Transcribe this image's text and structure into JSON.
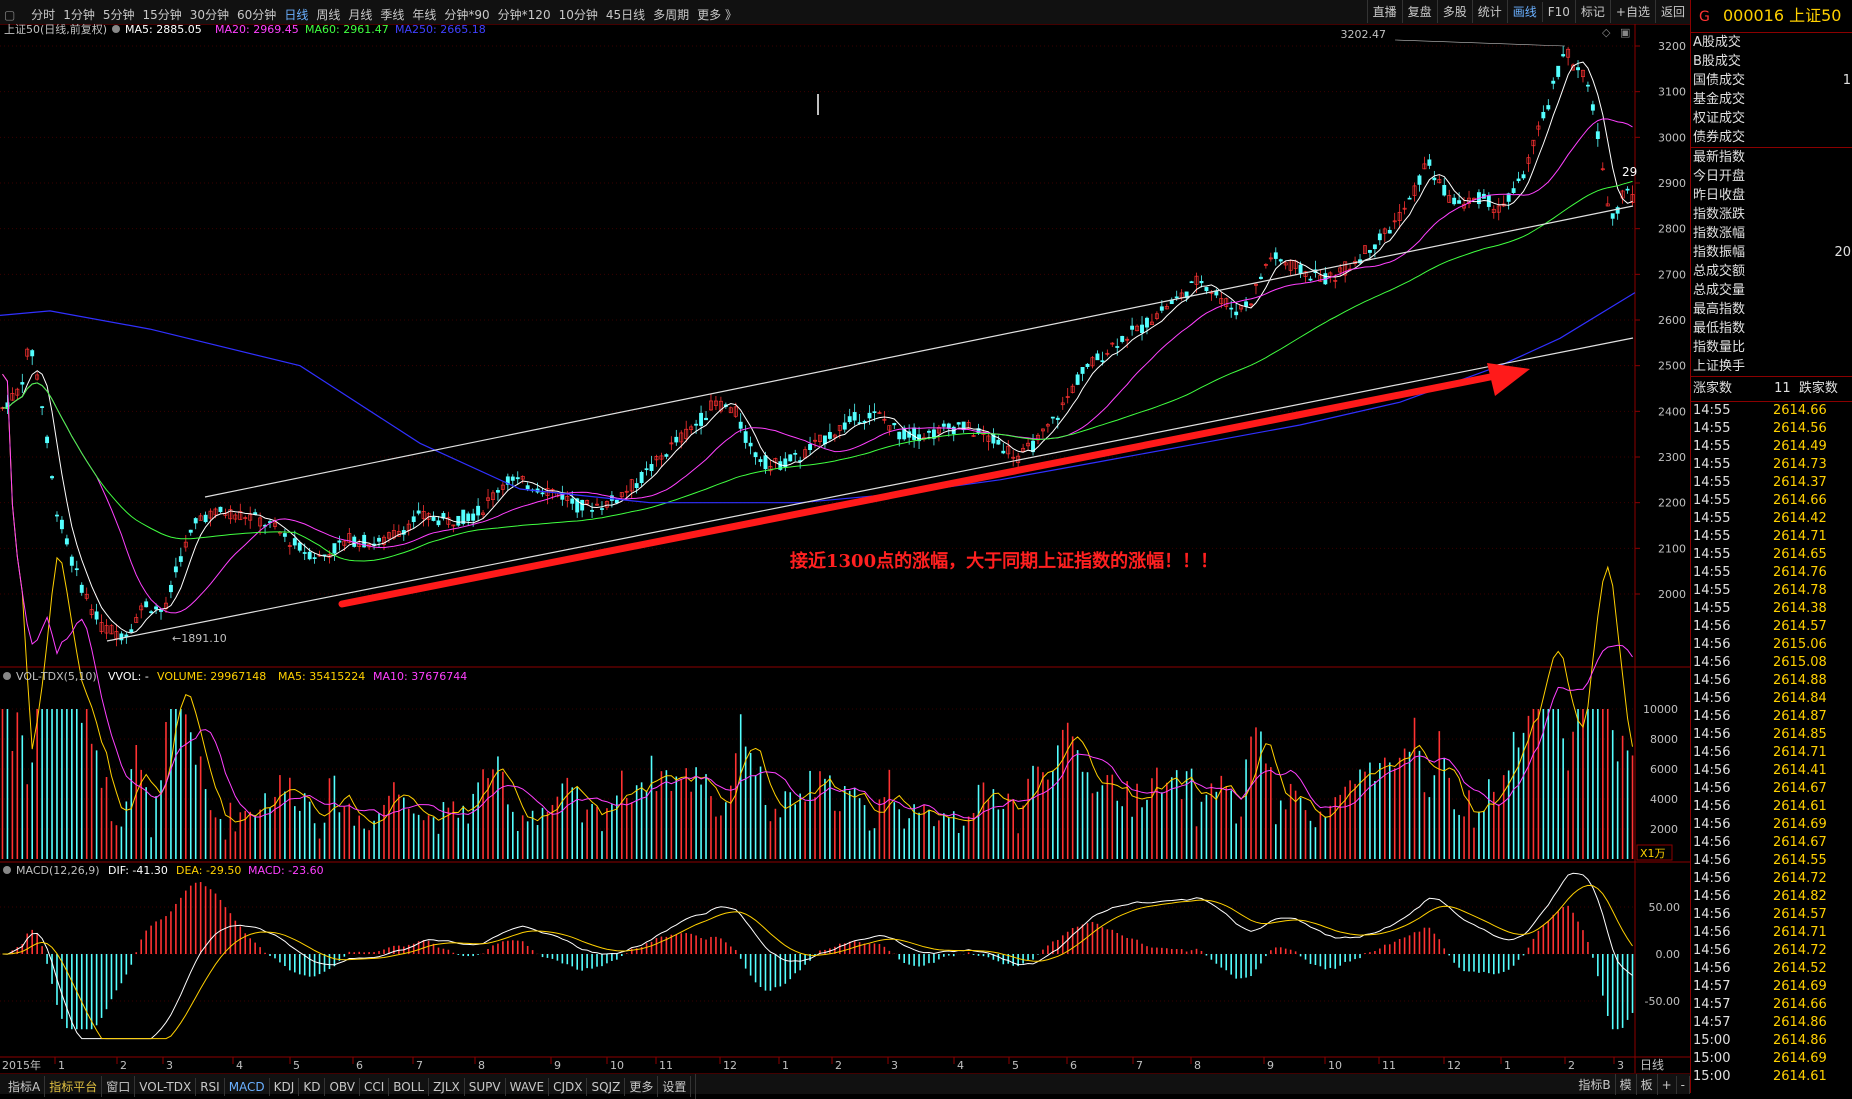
{
  "topbar": {
    "periods": [
      "分时",
      "1分钟",
      "5分钟",
      "15分钟",
      "30分钟",
      "60分钟",
      "日线",
      "周线",
      "月线",
      "季线",
      "年线",
      "分钟*90",
      "分钟*120",
      "10分钟",
      "45日线",
      "多周期",
      "更多 》"
    ],
    "active_period": "日线",
    "right_buttons": [
      "直播",
      "复盘",
      "多股",
      "统计",
      "画线",
      "F10",
      "标记",
      "+自选",
      "返回"
    ],
    "active_right": "画线"
  },
  "main_panel": {
    "title": "上证50(日线,前复权)",
    "ma_labels": [
      {
        "text": "MA5: 2885.05",
        "color": "#ffffff"
      },
      {
        "text": "MA20: 2969.45",
        "color": "#ff40ff"
      },
      {
        "text": "MA60: 2961.47",
        "color": "#40ff40"
      },
      {
        "text": "MA250: 2665.18",
        "color": "#4040ff"
      }
    ],
    "price_ticks": [
      "3200",
      "3100",
      "3000",
      "2900",
      "2800",
      "2700",
      "2600",
      "2500",
      "2400",
      "2300",
      "2200",
      "2100",
      "2000"
    ],
    "high_label": "3202.47",
    "low_label": "←1891.10",
    "annotation": "接近1300点的涨幅，大于同期上证指数的涨幅！！！",
    "partial_right": "29"
  },
  "volume_panel": {
    "title": "VOL-TDX(5,10)",
    "values": [
      {
        "text": "VVOL: -",
        "color": "#ffffff"
      },
      {
        "text": "VOLUME: 29967148",
        "color": "#ffd000"
      },
      {
        "text": "MA5: 35415224",
        "color": "#ffd000"
      },
      {
        "text": "MA10: 37676744",
        "color": "#ff40ff"
      }
    ],
    "ticks": [
      "10000",
      "8000",
      "6000",
      "4000",
      "2000"
    ],
    "unit": "X1万"
  },
  "macd_panel": {
    "title": "MACD(12,26,9)",
    "values": [
      {
        "text": "DIF: -41.30",
        "color": "#ffffff"
      },
      {
        "text": "DEA: -29.50",
        "color": "#ffd000"
      },
      {
        "text": "MACD: -23.60",
        "color": "#ff40ff"
      }
    ],
    "ticks": [
      "50.00",
      "0.00",
      "-50.00"
    ]
  },
  "x_axis": {
    "year_label": "2015年",
    "months": [
      "1",
      "2",
      "3",
      "4",
      "5",
      "6",
      "7",
      "8",
      "9",
      "10",
      "11",
      "12",
      "1",
      "2",
      "3",
      "4",
      "5",
      "6",
      "7",
      "8",
      "9",
      "10",
      "11",
      "12",
      "1",
      "2",
      "3"
    ],
    "period_label": "日线"
  },
  "bottombar": {
    "tabs": [
      "指标A",
      "指标平台",
      "窗口",
      "VOL-TDX",
      "RSI",
      "MACD",
      "KDJ",
      "KD",
      "OBV",
      "CCI",
      "BOLL",
      "ZJLX",
      "SUPV",
      "WAVE",
      "CJDX",
      "SQJZ",
      "更多",
      "设置"
    ],
    "active": "MACD",
    "right": [
      "指标B",
      "模",
      "板",
      "+",
      "-"
    ]
  },
  "side_panel": {
    "code": "000016 上证50",
    "marker": "G",
    "fields_a": [
      {
        "label": "A股成交",
        "value": ""
      },
      {
        "label": "B股成交",
        "value": ""
      },
      {
        "label": "国债成交",
        "value": "1"
      },
      {
        "label": "基金成交",
        "value": ""
      },
      {
        "label": "权证成交",
        "value": ""
      },
      {
        "label": "债券成交",
        "value": ""
      }
    ],
    "fields_b": [
      {
        "label": "最新指数",
        "value": ""
      },
      {
        "label": "今日开盘",
        "value": ""
      },
      {
        "label": "昨日收盘",
        "value": ""
      },
      {
        "label": "指数涨跌",
        "value": ""
      },
      {
        "label": "指数涨幅",
        "value": ""
      },
      {
        "label": "指数振幅",
        "value": "20"
      },
      {
        "label": "总成交额",
        "value": ""
      },
      {
        "label": "总成交量",
        "value": ""
      },
      {
        "label": "最高指数",
        "value": ""
      },
      {
        "label": "最低指数",
        "value": ""
      },
      {
        "label": "指数量比",
        "value": ""
      },
      {
        "label": "上证换手",
        "value": ""
      }
    ],
    "rise_label": "涨家数",
    "rise_count": "11",
    "fall_label": "跌家数",
    "ticks": [
      {
        "t": "14:55",
        "p": "2614.66"
      },
      {
        "t": "14:55",
        "p": "2614.56"
      },
      {
        "t": "14:55",
        "p": "2614.49"
      },
      {
        "t": "14:55",
        "p": "2614.73"
      },
      {
        "t": "14:55",
        "p": "2614.37"
      },
      {
        "t": "14:55",
        "p": "2614.66"
      },
      {
        "t": "14:55",
        "p": "2614.42"
      },
      {
        "t": "14:55",
        "p": "2614.71"
      },
      {
        "t": "14:55",
        "p": "2614.65"
      },
      {
        "t": "14:55",
        "p": "2614.76"
      },
      {
        "t": "14:55",
        "p": "2614.78"
      },
      {
        "t": "14:55",
        "p": "2614.38"
      },
      {
        "t": "14:56",
        "p": "2614.57"
      },
      {
        "t": "14:56",
        "p": "2615.06"
      },
      {
        "t": "14:56",
        "p": "2615.08"
      },
      {
        "t": "14:56",
        "p": "2614.88"
      },
      {
        "t": "14:56",
        "p": "2614.84"
      },
      {
        "t": "14:56",
        "p": "2614.87"
      },
      {
        "t": "14:56",
        "p": "2614.85"
      },
      {
        "t": "14:56",
        "p": "2614.71"
      },
      {
        "t": "14:56",
        "p": "2614.41"
      },
      {
        "t": "14:56",
        "p": "2614.67"
      },
      {
        "t": "14:56",
        "p": "2614.61"
      },
      {
        "t": "14:56",
        "p": "2614.69"
      },
      {
        "t": "14:56",
        "p": "2614.67"
      },
      {
        "t": "14:56",
        "p": "2614.55"
      },
      {
        "t": "14:56",
        "p": "2614.72"
      },
      {
        "t": "14:56",
        "p": "2614.82"
      },
      {
        "t": "14:56",
        "p": "2614.57"
      },
      {
        "t": "14:56",
        "p": "2614.71"
      },
      {
        "t": "14:56",
        "p": "2614.72"
      },
      {
        "t": "14:56",
        "p": "2614.52"
      },
      {
        "t": "14:57",
        "p": "2614.69"
      },
      {
        "t": "14:57",
        "p": "2614.66"
      },
      {
        "t": "14:57",
        "p": "2614.86"
      },
      {
        "t": "15:00",
        "p": "2614.86"
      },
      {
        "t": "15:00",
        "p": "2614.69"
      },
      {
        "t": "15:00",
        "p": "2614.61"
      }
    ]
  },
  "colors": {
    "up": "#ff3232",
    "down": "#54ffff",
    "grid": "#8b0000",
    "trend": "#ff1a1a"
  }
}
